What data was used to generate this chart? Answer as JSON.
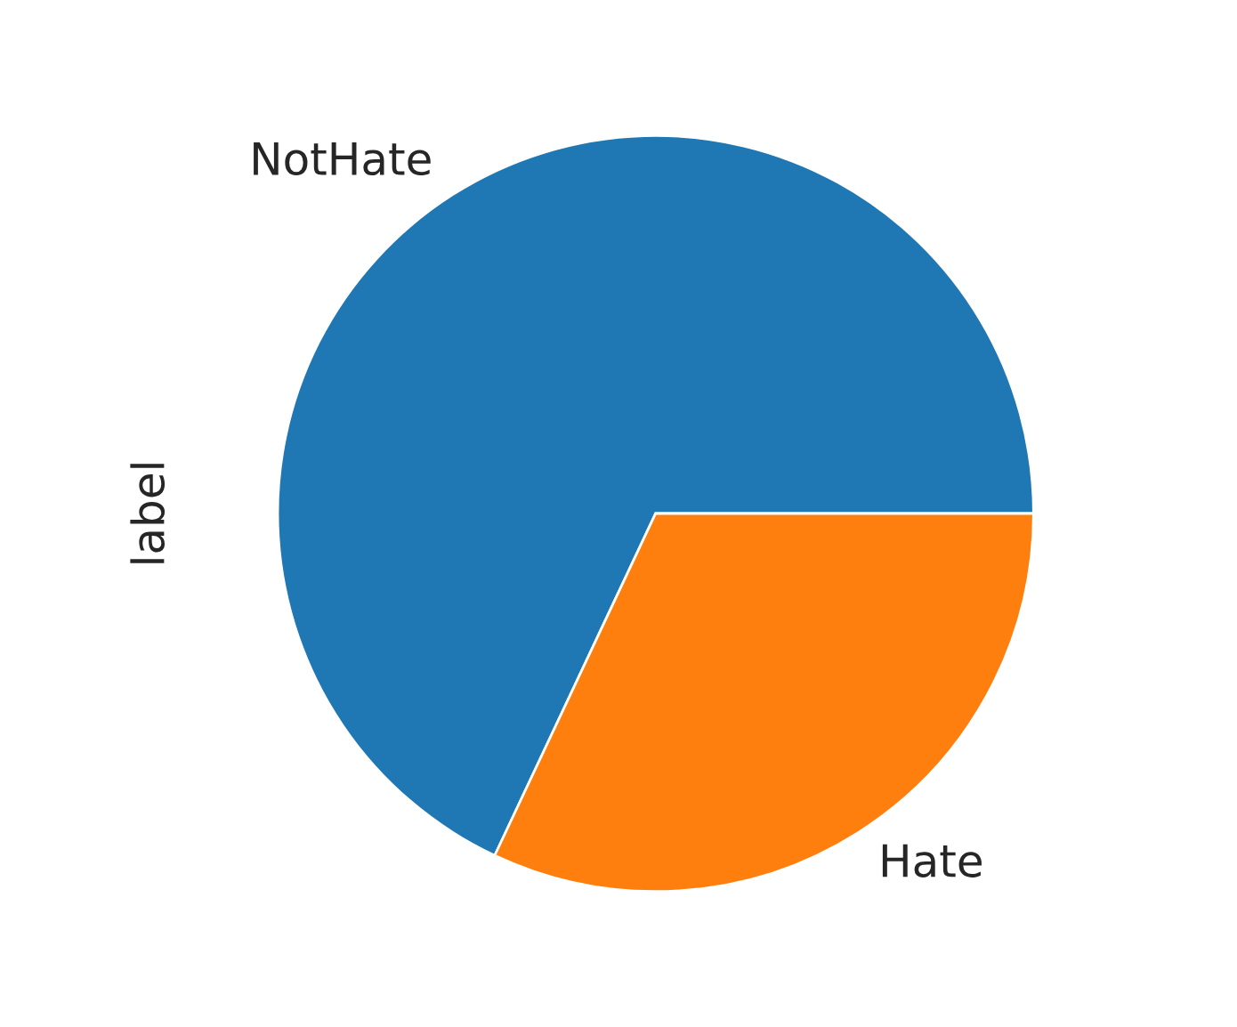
{
  "chart_data": {
    "type": "pie",
    "ylabel": "label",
    "categories": [
      "NotHate",
      "Hate"
    ],
    "values": [
      68,
      32
    ],
    "colors": [
      "#1f77b4",
      "#ff7f0e"
    ]
  }
}
